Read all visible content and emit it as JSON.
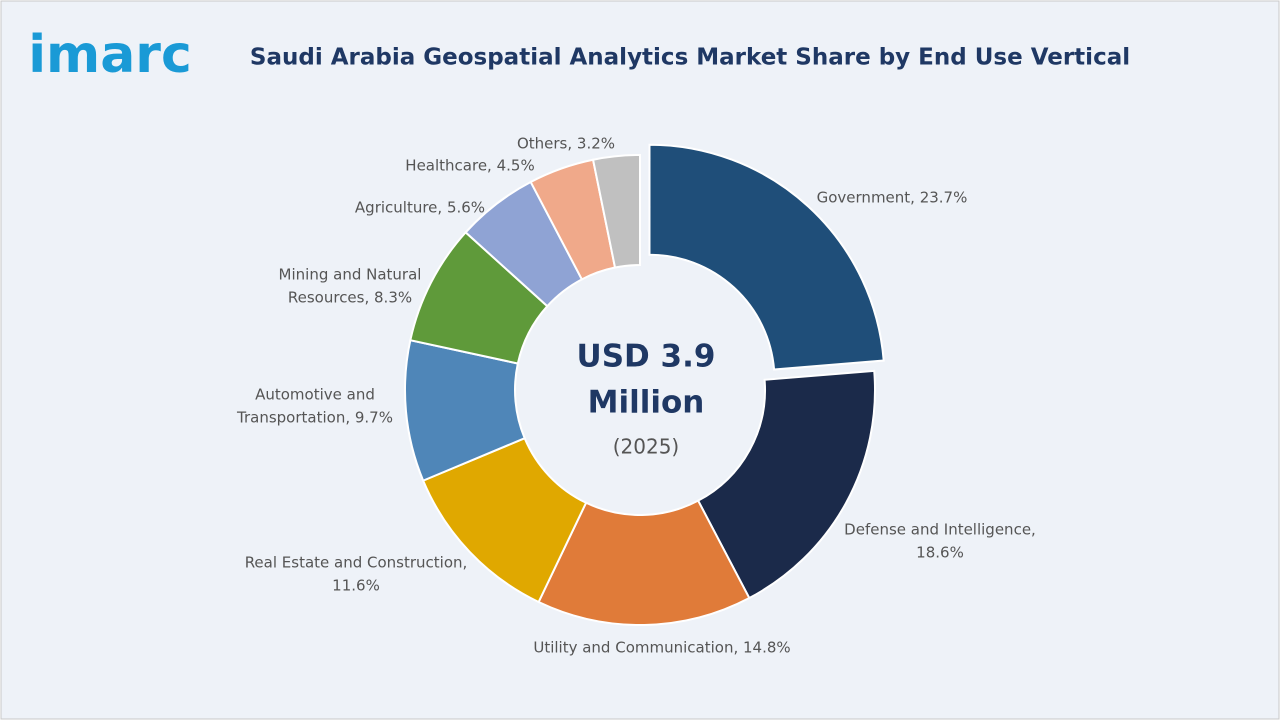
{
  "logo": "imarc",
  "chart_data": {
    "type": "donut",
    "title": "Saudi Arabia Geospatial Analytics Market Share by End Use Vertical",
    "center_label": [
      "USD 3.9",
      "Million",
      "(2025)"
    ],
    "values": [
      23.7,
      18.6,
      14.8,
      11.6,
      9.7,
      8.3,
      5.6,
      4.5,
      3.2
    ],
    "value_labels": [
      [
        "Government, 23.7%"
      ],
      [
        "Defense and Intelligence,",
        "18.6%"
      ],
      [
        "Utility and Communication, 14.8%"
      ],
      [
        "Real Estate and Construction,",
        "11.6%"
      ],
      [
        "Automotive and",
        "Transportation, 9.7%"
      ],
      [
        "Mining and Natural",
        "Resources, 8.3%"
      ],
      [
        "Agriculture, 5.6%"
      ],
      [
        "Healthcare, 4.5%"
      ],
      [
        "Others, 3.2%"
      ]
    ],
    "colors": [
      "#1f4e79",
      "#1b2a4a",
      "#e07b39",
      "#e0a800",
      "#4f86b8",
      "#5f9a3a",
      "#8fa3d4",
      "#f0a98a",
      "#c0c0c0"
    ],
    "exploded": [
      0
    ]
  }
}
